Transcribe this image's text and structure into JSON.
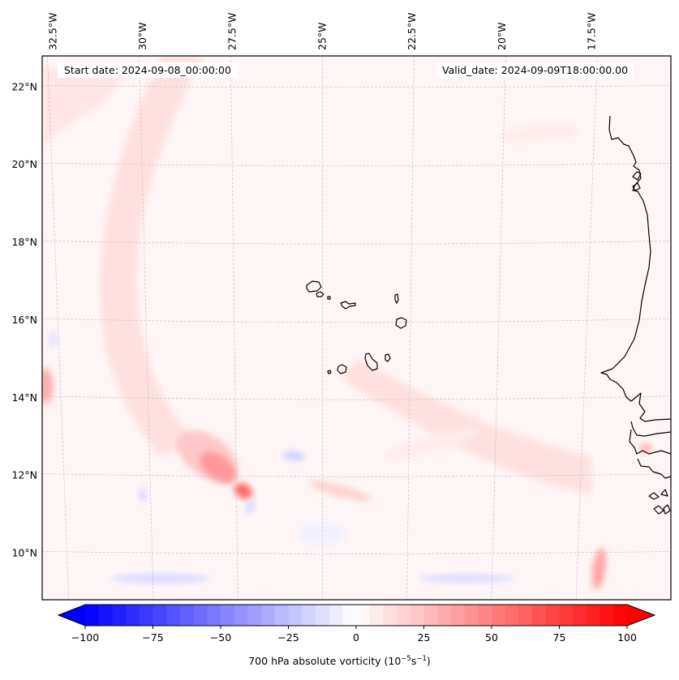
{
  "chart_data": {
    "type": "heatmap",
    "title": "",
    "variable": "700 hPa absolute vorticity",
    "units": "10^-5 s^-1",
    "start_date_label": "Start date: 2024-09-08_00:00:00",
    "valid_date_label": "Valid_date: 2024-09-09T18:00:00.00",
    "lon_range_deg": [
      -32.8,
      -15.3
    ],
    "lat_range_deg": [
      8.8,
      22.8
    ],
    "x_tick_labels": [
      "32.5°W",
      "30°W",
      "27.5°W",
      "25°W",
      "22.5°W",
      "20°W",
      "17.5°W"
    ],
    "x_tick_values": [
      -32.5,
      -30,
      -27.5,
      -25,
      -22.5,
      -20,
      -17.5
    ],
    "y_tick_labels": [
      "22°N",
      "20°N",
      "18°N",
      "16°N",
      "14°N",
      "12°N",
      "10°N"
    ],
    "y_tick_values": [
      22,
      20,
      18,
      16,
      14,
      12,
      10
    ],
    "grid": true,
    "colorbar": {
      "orientation": "horizontal",
      "placement": "bottom",
      "colormap": "bwr",
      "vmin": -100,
      "vmax": 100,
      "levels": 40,
      "extend": "both",
      "tick_values": [
        -100,
        -75,
        -50,
        -25,
        0,
        25,
        50,
        75,
        100
      ],
      "tick_labels": [
        "−100",
        "−75",
        "−50",
        "−25",
        "0",
        "25",
        "50",
        "75",
        "100"
      ],
      "label_main": "700 hPa absolute vorticity (10",
      "label_exp1": "−5",
      "label_mid": "s",
      "label_exp2": "−1",
      "label_end": ")"
    },
    "features": [
      {
        "name": "vorticity-maximum-main",
        "lon": -27.9,
        "lat": 12.2,
        "value": 55
      },
      {
        "name": "vorticity-maximum-secondary",
        "lon": -27.2,
        "lat": 11.6,
        "value": 60
      },
      {
        "name": "vorticity-band-northwest",
        "lon": -30.5,
        "lat": 17.0,
        "value": 10
      },
      {
        "name": "vorticity-western-edge",
        "lon": -32.7,
        "lat": 14.2,
        "value": 35
      },
      {
        "name": "vorticity-south-coast",
        "lon": -17.3,
        "lat": 9.5,
        "value": 40
      },
      {
        "name": "vorticity-coast-guinea",
        "lon": -16.0,
        "lat": 12.7,
        "value": 35
      },
      {
        "name": "negative-band-south-west",
        "lon": -29.5,
        "lat": 9.4,
        "value": -15
      },
      {
        "name": "negative-band-south-east",
        "lon": -21.0,
        "lat": 9.4,
        "value": -15
      },
      {
        "name": "negative-spot-center",
        "lon": -25.8,
        "lat": 12.5,
        "value": -15
      }
    ]
  }
}
